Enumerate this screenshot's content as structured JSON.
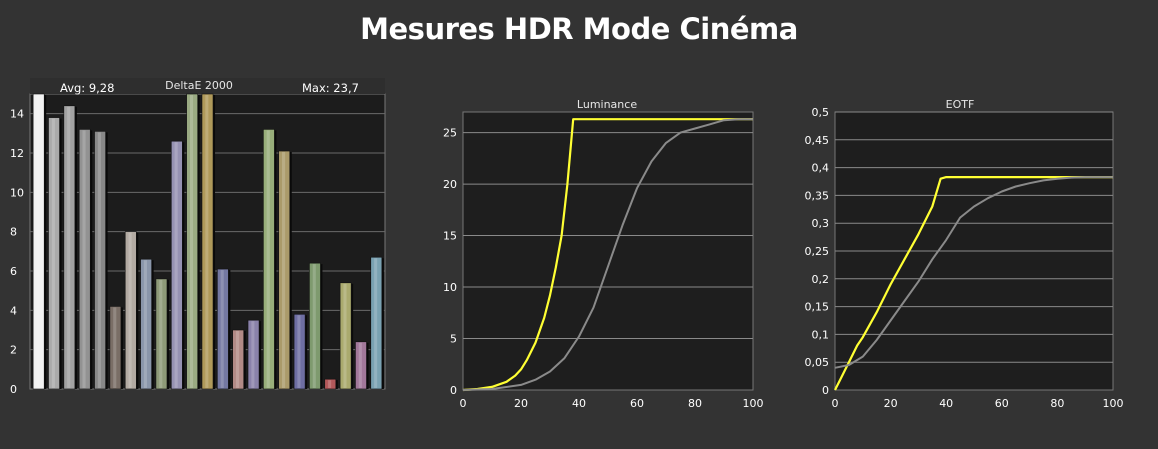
{
  "page": {
    "title": "Mesures HDR Mode Cinéma"
  },
  "chart_data": [
    {
      "type": "bar",
      "title": "DeltaE 2000",
      "stats": {
        "avg": "Avg: 9,28",
        "max": "Max: 23,7"
      },
      "ylim": [
        0,
        15
      ],
      "yticks": [
        "0",
        "2",
        "4",
        "6",
        "8",
        "10",
        "12",
        "14"
      ],
      "grid": true,
      "values": [
        15,
        13.8,
        14.4,
        13.2,
        13.1,
        4.2,
        8.0,
        6.6,
        5.6,
        12.6,
        15,
        15,
        6.1,
        3.0,
        3.5,
        13.2,
        12.1,
        3.8,
        6.4,
        0.5,
        5.4,
        2.4,
        6.7
      ],
      "colors": [
        "#f2f2f2",
        "#aaaaaa",
        "#a2a2a2",
        "#929292",
        "#888888",
        "#7a6e66",
        "#b2aaa2",
        "#8a96aa",
        "#8e9a78",
        "#9692b2",
        "#9aaa82",
        "#b09a5a",
        "#7478a2",
        "#b28a86",
        "#8a82aa",
        "#98ae7a",
        "#aa9a6a",
        "#6e6ea2",
        "#7e9a6e",
        "#b2585a",
        "#aaaa6e",
        "#a2789a",
        "#7aa2b2"
      ]
    },
    {
      "type": "line",
      "title": "Luminance",
      "xlim": [
        0,
        100
      ],
      "ylim": [
        0,
        27
      ],
      "xticks": [
        "0",
        "20",
        "40",
        "60",
        "80",
        "100"
      ],
      "yticks": [
        "0",
        "5",
        "10",
        "15",
        "20",
        "25"
      ],
      "grid": true,
      "series": [
        {
          "color": "#ffff33",
          "x": [
            0,
            5,
            10,
            15,
            18,
            20,
            22,
            25,
            28,
            30,
            32,
            34,
            36,
            38,
            40,
            60,
            80,
            100
          ],
          "y": [
            0,
            0.1,
            0.3,
            0.8,
            1.4,
            2.0,
            2.9,
            4.6,
            7.0,
            9.2,
            11.9,
            15.0,
            20.0,
            26.3,
            26.3,
            26.3,
            26.3,
            26.3
          ]
        },
        {
          "color": "#8a8a8a",
          "x": [
            0,
            10,
            20,
            25,
            30,
            35,
            40,
            45,
            50,
            55,
            60,
            65,
            70,
            75,
            80,
            85,
            90,
            95,
            100
          ],
          "y": [
            0,
            0.1,
            0.5,
            1.0,
            1.8,
            3.1,
            5.2,
            8.0,
            12.0,
            16.0,
            19.6,
            22.2,
            24.0,
            25.0,
            25.4,
            25.8,
            26.2,
            26.3,
            26.3
          ]
        }
      ]
    },
    {
      "type": "line",
      "title": "EOTF",
      "xlim": [
        0,
        100
      ],
      "ylim": [
        0,
        0.5
      ],
      "xticks": [
        "0",
        "20",
        "40",
        "60",
        "80",
        "100"
      ],
      "yticks": [
        "0",
        "0,05",
        "0,1",
        "0,15",
        "0,2",
        "0,25",
        "0,3",
        "0,35",
        "0,4",
        "0,45",
        "0,5"
      ],
      "grid": true,
      "series": [
        {
          "color": "#ffff33",
          "x": [
            0,
            2,
            5,
            8,
            10,
            15,
            20,
            25,
            30,
            35,
            38,
            40,
            60,
            80,
            100
          ],
          "y": [
            0,
            0.02,
            0.05,
            0.08,
            0.095,
            0.14,
            0.19,
            0.235,
            0.28,
            0.33,
            0.38,
            0.383,
            0.383,
            0.383,
            0.383
          ]
        },
        {
          "color": "#8a8a8a",
          "x": [
            0,
            5,
            10,
            15,
            20,
            25,
            30,
            35,
            40,
            45,
            50,
            55,
            60,
            65,
            70,
            75,
            80,
            85,
            90,
            100
          ],
          "y": [
            0.04,
            0.045,
            0.06,
            0.09,
            0.125,
            0.16,
            0.195,
            0.235,
            0.27,
            0.31,
            0.33,
            0.345,
            0.357,
            0.366,
            0.372,
            0.377,
            0.38,
            0.382,
            0.383,
            0.383
          ]
        }
      ]
    }
  ]
}
